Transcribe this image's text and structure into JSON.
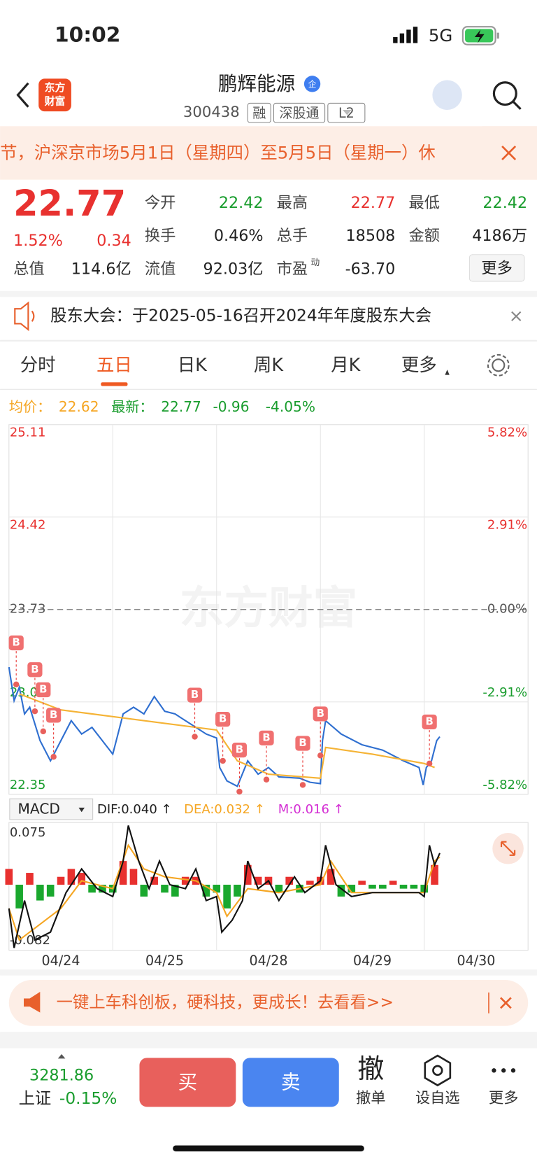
{
  "status": {
    "time": "10:02",
    "network": "5G"
  },
  "header": {
    "logo": [
      "东方",
      "财富"
    ],
    "name": "鹏辉能源",
    "badge": "企",
    "code": "300438",
    "tags": [
      "融",
      "深股通",
      "L2"
    ]
  },
  "banner": {
    "text": "节，沪深京市场5月1日（星期四）至5月5日（星期一）休"
  },
  "quote": {
    "price": "22.77",
    "change_pct": "1.52%",
    "change": "0.34",
    "fields": [
      [
        {
          "label": "今开",
          "value": "22.42",
          "color": "#1a9d2e"
        },
        {
          "label": "最高",
          "value": "22.77",
          "color": "#e8312f"
        },
        {
          "label": "最低",
          "value": "22.42",
          "color": "#1a9d2e"
        }
      ],
      [
        {
          "label": "换手",
          "value": "0.46%",
          "color": "#222"
        },
        {
          "label": "总手",
          "value": "18508",
          "color": "#222"
        },
        {
          "label": "金额",
          "value": "4186万",
          "color": "#222"
        }
      ],
      [
        {
          "label": "总值",
          "value": "114.6亿",
          "color": "#222"
        },
        {
          "label": "流值",
          "value": "92.03亿",
          "color": "#222"
        },
        {
          "label": "市盈",
          "sup": "动",
          "value": "-63.70",
          "color": "#222"
        }
      ]
    ],
    "more": "更多"
  },
  "notice": {
    "text": "股东大会：于2025-05-16召开2024年年度股东大会"
  },
  "tabs": {
    "items": [
      "分时",
      "五日",
      "日K",
      "周K",
      "月K",
      "更多"
    ],
    "active": 1
  },
  "legend": {
    "avg_label": "均价：",
    "avg": "22.62",
    "latest_label": "最新：",
    "latest": "22.77",
    "change": "-0.96",
    "change_pct": "-4.05%"
  },
  "chart_data": {
    "type": "line",
    "watermark": "东方财富",
    "categories": [
      "04/24",
      "04/25",
      "04/28",
      "04/29",
      "04/30"
    ],
    "xlim": [
      0,
      5
    ],
    "ylim": [
      22.35,
      25.11
    ],
    "yticks": [
      25.11,
      24.42,
      23.73,
      23.04,
      22.35
    ],
    "y2lim": [
      -5.82,
      5.82
    ],
    "y2ticks": [
      {
        "value": 5.82,
        "label": "5.82%"
      },
      {
        "value": 2.91,
        "label": "2.91%"
      },
      {
        "value": 0,
        "label": "0.00%"
      },
      {
        "value": -2.91,
        "label": "-2.91%"
      },
      {
        "value": -5.82,
        "label": "-5.82%"
      }
    ],
    "series": [
      {
        "name": "最新",
        "color": "#2f6fd0",
        "x": [
          0,
          0.05,
          0.1,
          0.15,
          0.2,
          0.3,
          0.4,
          0.5,
          0.6,
          0.7,
          0.8,
          0.9,
          1.0,
          1.05,
          1.1,
          1.2,
          1.3,
          1.4,
          1.5,
          1.6,
          1.7,
          1.8,
          1.9,
          2.0,
          2.03,
          2.1,
          2.2,
          2.3,
          2.4,
          2.5,
          2.6,
          2.8,
          2.9,
          3.0,
          3.02,
          3.05,
          3.2,
          3.4,
          3.6,
          3.8,
          3.95,
          3.99,
          4.02,
          4.07,
          4.12,
          4.15
        ],
        "values": [
          23.3,
          23.05,
          23.15,
          22.95,
          23.0,
          22.75,
          22.6,
          22.75,
          22.9,
          22.8,
          22.85,
          22.75,
          22.65,
          22.8,
          22.95,
          23.0,
          22.95,
          23.08,
          22.97,
          22.95,
          22.9,
          22.85,
          22.8,
          22.77,
          22.55,
          22.45,
          22.41,
          22.6,
          22.5,
          22.55,
          22.48,
          22.47,
          22.44,
          22.43,
          22.75,
          22.9,
          22.8,
          22.72,
          22.68,
          22.6,
          22.55,
          22.42,
          22.55,
          22.6,
          22.75,
          22.78
        ]
      },
      {
        "name": "均价",
        "color": "#f5b335",
        "x": [
          0.1,
          0.5,
          1.0,
          1.5,
          2.0,
          2.2,
          2.5,
          3.0,
          3.05,
          3.5,
          4.0,
          4.1
        ],
        "values": [
          23.1,
          22.98,
          22.93,
          22.88,
          22.83,
          22.6,
          22.5,
          22.47,
          22.7,
          22.65,
          22.58,
          22.55
        ]
      }
    ],
    "signals": [
      {
        "label": "B",
        "x": 0.07,
        "value": 23.17
      },
      {
        "label": "B",
        "x": 0.25,
        "value": 22.97
      },
      {
        "label": "B",
        "x": 0.33,
        "value": 22.82
      },
      {
        "label": "B",
        "x": 0.43,
        "value": 22.63
      },
      {
        "label": "B",
        "x": 1.79,
        "value": 22.78
      },
      {
        "label": "B",
        "x": 2.06,
        "value": 22.6
      },
      {
        "label": "B",
        "x": 2.22,
        "value": 22.37
      },
      {
        "label": "B",
        "x": 2.48,
        "value": 22.46
      },
      {
        "label": "B",
        "x": 2.83,
        "value": 22.42
      },
      {
        "label": "B",
        "x": 3.0,
        "value": 22.64
      },
      {
        "label": "B",
        "x": 4.05,
        "value": 22.58
      }
    ]
  },
  "macd": {
    "indicator": "MACD",
    "dif_label": "DIF:0.040 ↑",
    "dea_label": "DEA:0.032 ↑",
    "m_label": "M:0.016 ↑",
    "ylim": [
      -0.082,
      0.075
    ],
    "yticks": [
      0.075,
      -0.082
    ],
    "dif": {
      "color": "#111",
      "x": [
        0,
        0.05,
        0.15,
        0.25,
        0.4,
        0.55,
        0.7,
        0.85,
        1.0,
        1.1,
        1.15,
        1.25,
        1.35,
        1.45,
        1.55,
        1.7,
        1.8,
        1.9,
        2.0,
        2.05,
        2.15,
        2.25,
        2.3,
        2.4,
        2.5,
        2.6,
        2.75,
        2.85,
        3.0,
        3.05,
        3.15,
        3.3,
        3.5,
        3.7,
        3.95,
        4.0,
        4.05,
        4.1,
        4.15
      ],
      "values": [
        -0.03,
        -0.08,
        -0.02,
        -0.07,
        -0.06,
        -0.01,
        0.02,
        -0.005,
        -0.015,
        0.03,
        0.075,
        0.03,
        -0.005,
        0.03,
        0,
        -0.005,
        0.02,
        -0.02,
        -0.015,
        -0.06,
        -0.045,
        -0.02,
        0.03,
        -0.005,
        0.005,
        -0.02,
        0.01,
        -0.01,
        0.005,
        0.05,
        0,
        -0.015,
        -0.01,
        -0.01,
        -0.01,
        -0.015,
        0.05,
        0.025,
        0.04
      ]
    },
    "dea": {
      "color": "#f5a623",
      "x": [
        0,
        0.1,
        0.3,
        0.5,
        0.7,
        1.0,
        1.15,
        1.3,
        1.5,
        1.8,
        2.0,
        2.1,
        2.3,
        2.6,
        3.0,
        3.1,
        3.3,
        4.0,
        4.1,
        4.15
      ],
      "values": [
        -0.03,
        -0.07,
        -0.05,
        -0.03,
        0.005,
        -0.005,
        0.05,
        0.02,
        0.01,
        0.005,
        -0.01,
        -0.04,
        -0.005,
        -0.01,
        0,
        0.03,
        -0.01,
        -0.01,
        0.03,
        0.035
      ]
    },
    "hist": {
      "up_color": "#e8312f",
      "down_color": "#1aa82e",
      "x": [
        0,
        0.1,
        0.2,
        0.3,
        0.4,
        0.5,
        0.6,
        0.7,
        0.8,
        0.9,
        1.0,
        1.1,
        1.2,
        1.3,
        1.4,
        1.5,
        1.6,
        1.7,
        1.8,
        1.9,
        2.0,
        2.1,
        2.2,
        2.3,
        2.4,
        2.5,
        2.6,
        2.7,
        2.8,
        2.9,
        3.0,
        3.1,
        3.2,
        3.3,
        3.4,
        3.5,
        3.6,
        3.7,
        3.8,
        3.9,
        4.0,
        4.1
      ],
      "values": [
        0.02,
        -0.03,
        0.015,
        -0.02,
        -0.015,
        0.01,
        0.02,
        0.015,
        -0.01,
        -0.01,
        -0.01,
        0.03,
        0.02,
        -0.015,
        0.01,
        -0.01,
        -0.015,
        0.01,
        0.01,
        -0.015,
        -0.01,
        -0.03,
        -0.015,
        0.025,
        0.01,
        0.01,
        -0.01,
        0.01,
        -0.01,
        0.005,
        0.01,
        0.02,
        -0.015,
        -0.01,
        0.005,
        -0.005,
        -0.005,
        0.005,
        -0.005,
        -0.005,
        -0.01,
        0.025
      ]
    }
  },
  "ad": {
    "text": "一键上车科创板，硬科技，更成长！去看看>>"
  },
  "footer": {
    "index_value": "3281.86",
    "index_name": "上证",
    "index_pct": "-0.15%",
    "buy": "买",
    "sell": "卖",
    "cancel_icon": "撤",
    "actions": [
      "撤单",
      "设自选",
      "更多"
    ]
  }
}
